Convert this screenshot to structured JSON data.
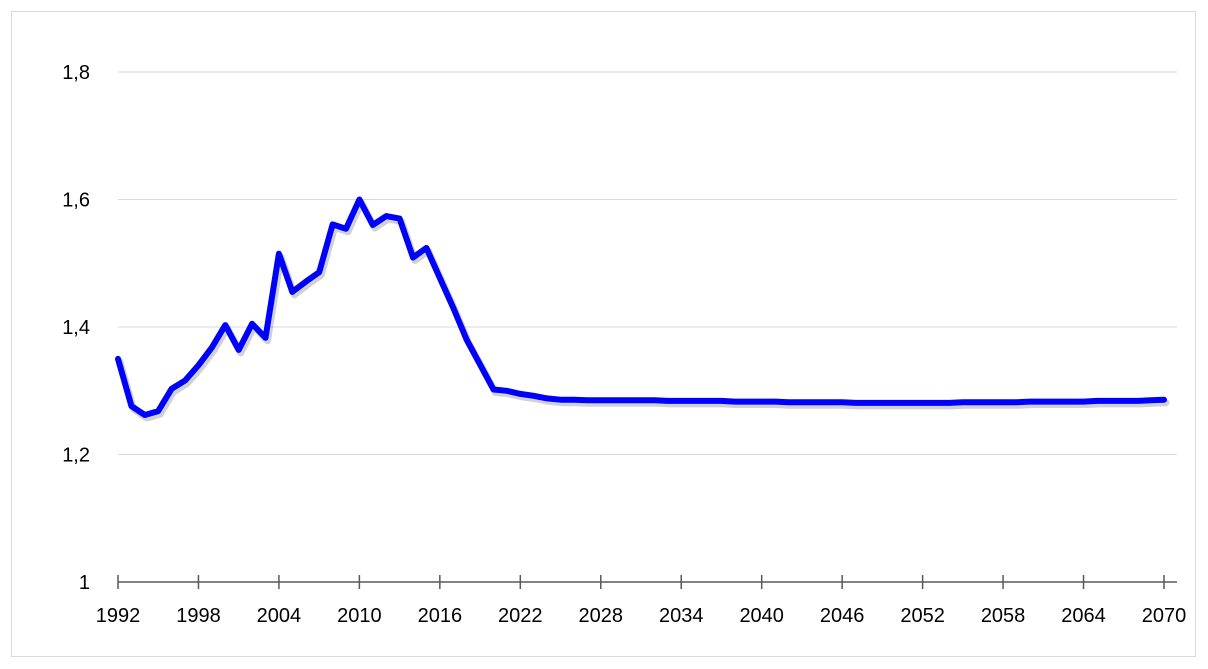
{
  "chart_data": {
    "type": "line",
    "title": "",
    "xlabel": "",
    "ylabel": "",
    "xlim": [
      1992,
      2070
    ],
    "ylim": [
      1,
      1.8
    ],
    "grid": true,
    "legend": "none",
    "x_tick_labels": [
      "1992",
      "1998",
      "2004",
      "2010",
      "2016",
      "2022",
      "2028",
      "2034",
      "2040",
      "2046",
      "2052",
      "2058",
      "2064",
      "2070"
    ],
    "y_tick_labels": [
      "1",
      "1,2",
      "1,4",
      "1,6",
      "1,8"
    ],
    "y_tick_values": [
      1,
      1.2,
      1.4,
      1.6,
      1.8
    ],
    "colors": {
      "line": "#0000ff",
      "grid": "#d9d9d9",
      "axis": "#595959"
    },
    "series": [
      {
        "x": [
          1992,
          1993,
          1994,
          1995,
          1996,
          1997,
          1998,
          1999,
          2000,
          2001,
          2002,
          2003,
          2004,
          2005,
          2006,
          2007,
          2008,
          2009,
          2010,
          2011,
          2012,
          2013,
          2014,
          2015,
          2016,
          2017,
          2018,
          2019,
          2020,
          2021,
          2022,
          2023,
          2024,
          2025,
          2026,
          2027,
          2028,
          2029,
          2030,
          2031,
          2032,
          2033,
          2034,
          2035,
          2036,
          2037,
          2038,
          2039,
          2040,
          2041,
          2042,
          2043,
          2044,
          2045,
          2046,
          2047,
          2048,
          2049,
          2050,
          2051,
          2052,
          2053,
          2054,
          2055,
          2056,
          2057,
          2058,
          2059,
          2060,
          2061,
          2062,
          2063,
          2064,
          2065,
          2066,
          2067,
          2068,
          2069,
          2070
        ],
        "values": [
          1.35,
          1.276,
          1.262,
          1.268,
          1.303,
          1.316,
          1.34,
          1.368,
          1.403,
          1.364,
          1.405,
          1.383,
          1.515,
          1.455,
          1.471,
          1.486,
          1.561,
          1.554,
          1.6,
          1.56,
          1.574,
          1.57,
          1.509,
          1.524,
          1.477,
          1.43,
          1.38,
          1.341,
          1.302,
          1.3,
          1.295,
          1.292,
          1.288,
          1.286,
          1.286,
          1.285,
          1.285,
          1.285,
          1.285,
          1.285,
          1.285,
          1.284,
          1.284,
          1.284,
          1.284,
          1.284,
          1.283,
          1.283,
          1.283,
          1.283,
          1.282,
          1.282,
          1.282,
          1.282,
          1.282,
          1.281,
          1.281,
          1.281,
          1.281,
          1.281,
          1.281,
          1.281,
          1.281,
          1.282,
          1.282,
          1.282,
          1.282,
          1.282,
          1.283,
          1.283,
          1.283,
          1.283,
          1.283,
          1.284,
          1.284,
          1.284,
          1.284,
          1.285,
          1.286
        ]
      }
    ]
  }
}
